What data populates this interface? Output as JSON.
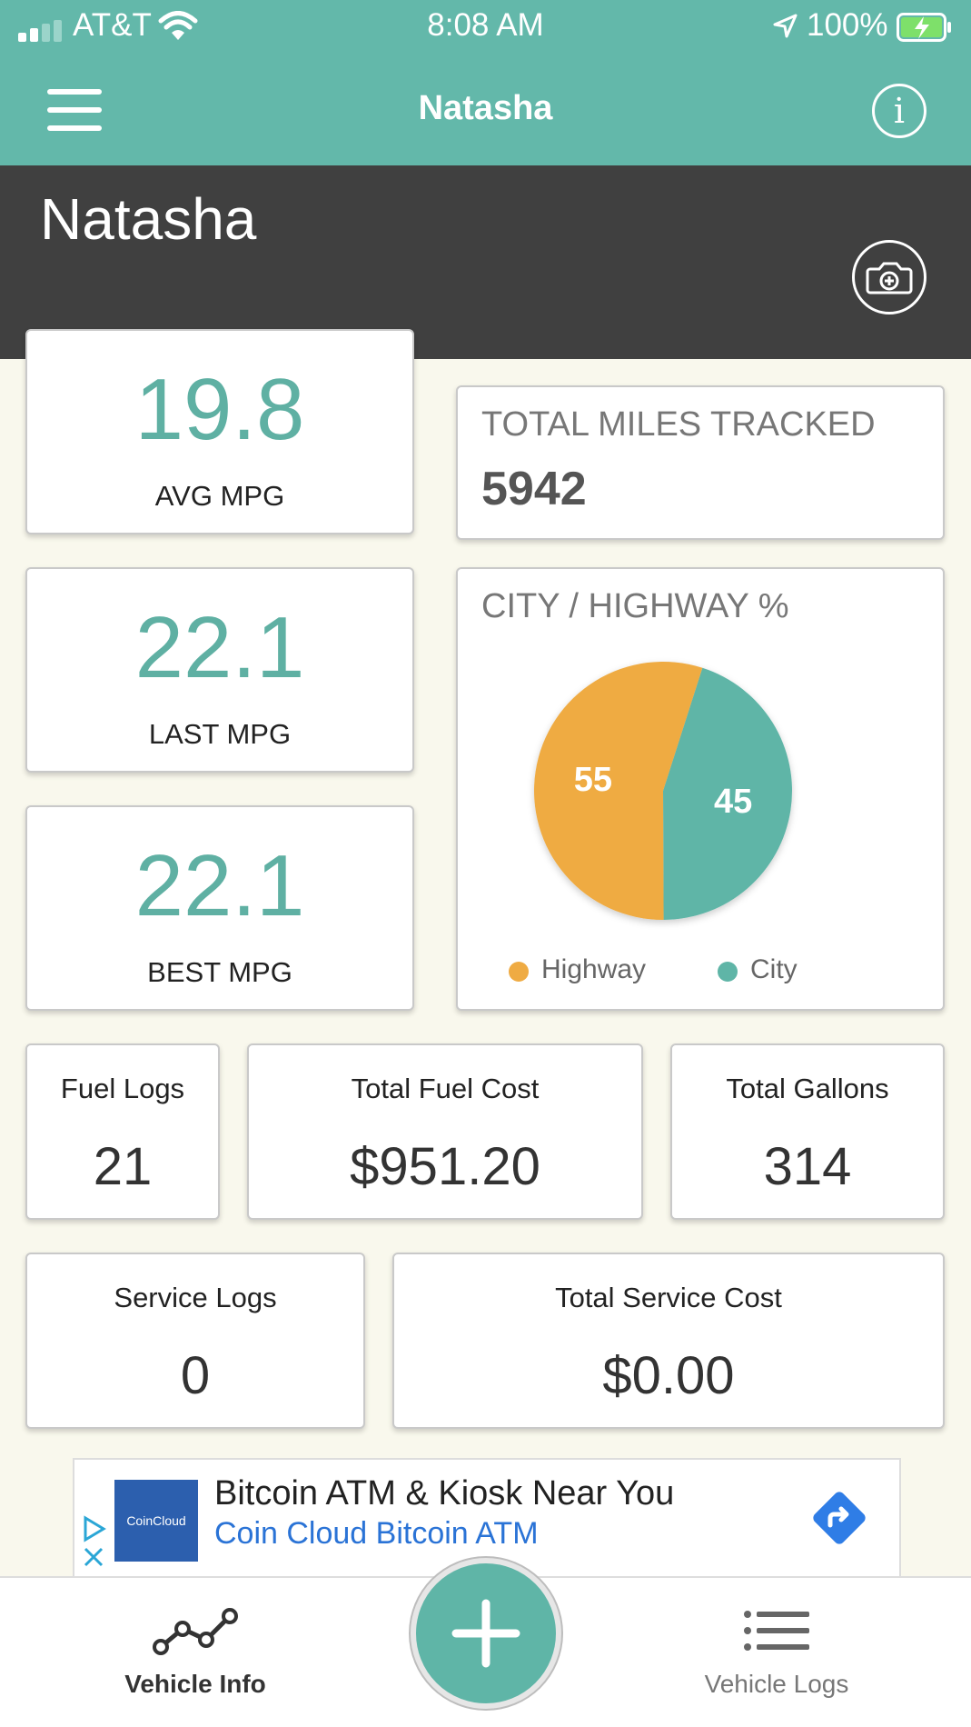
{
  "status": {
    "carrier": "AT&T",
    "time": "8:08 AM",
    "battery": "100%"
  },
  "nav": {
    "title": "Natasha"
  },
  "header": {
    "vehicle_name": "Natasha"
  },
  "stats": {
    "avg_mpg": {
      "value": "19.8",
      "label": "AVG MPG"
    },
    "last_mpg": {
      "value": "22.1",
      "label": "LAST MPG"
    },
    "best_mpg": {
      "value": "22.1",
      "label": "BEST MPG"
    },
    "total_miles": {
      "label": "TOTAL MILES TRACKED",
      "value": "5942"
    }
  },
  "city_highway": {
    "title": "CITY / HIGHWAY %",
    "slices": [
      {
        "name": "Highway",
        "value": 55,
        "color": "#efab43"
      },
      {
        "name": "City",
        "value": 45,
        "color": "#5fb5a7"
      }
    ]
  },
  "summary": {
    "fuel_logs": {
      "label": "Fuel Logs",
      "value": "21"
    },
    "total_fuel_cost": {
      "label": "Total Fuel Cost",
      "value": "$951.20"
    },
    "total_gallons": {
      "label": "Total Gallons",
      "value": "314"
    },
    "service_logs": {
      "label": "Service Logs",
      "value": "0"
    },
    "total_service_cost": {
      "label": "Total Service Cost",
      "value": "$0.00"
    }
  },
  "ad": {
    "logo_text": "CoinCloud",
    "headline": "Bitcoin ATM & Kiosk Near You",
    "subline": "Coin Cloud Bitcoin ATM"
  },
  "tabs": {
    "vehicle_info": "Vehicle Info",
    "vehicle_logs": "Vehicle Logs"
  },
  "colors": {
    "teal": "#63b8aa",
    "dark": "#404040",
    "highway": "#efab43",
    "city": "#5fb5a7"
  }
}
